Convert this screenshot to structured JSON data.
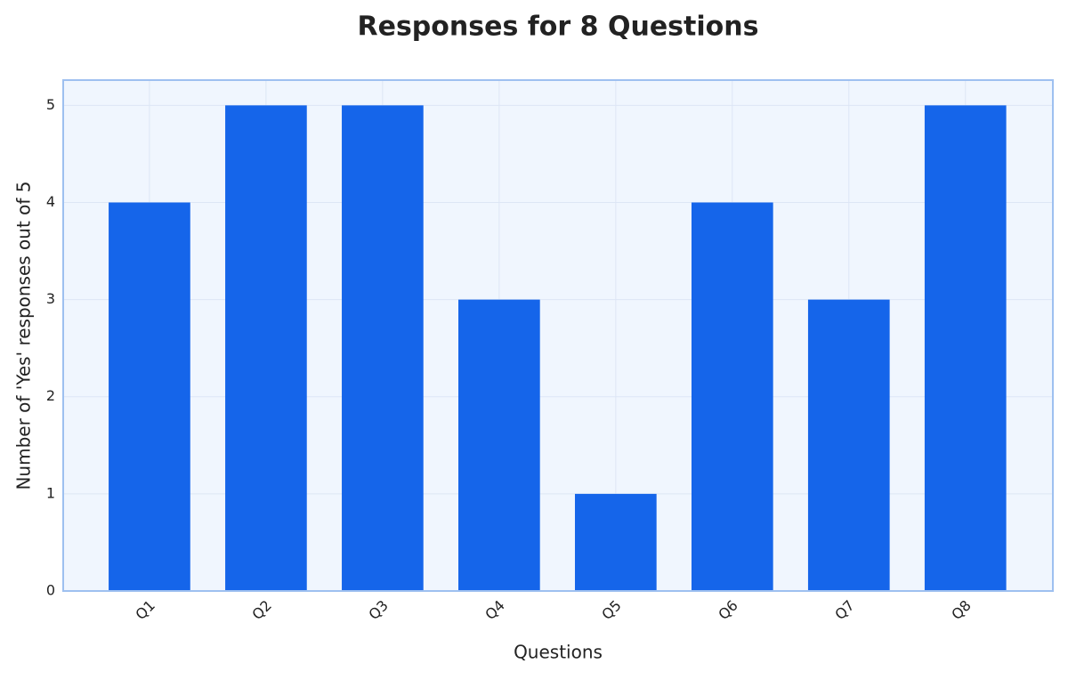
{
  "chart_data": {
    "type": "bar",
    "title": "Responses for 8 Questions",
    "x_label": "Questions",
    "y_label": "Number of 'Yes' responses out of 5",
    "categories": [
      "Q1",
      "Q2",
      "Q3",
      "Q4",
      "Q5",
      "Q6",
      "Q7",
      "Q8"
    ],
    "values": [
      4,
      5,
      5,
      3,
      1,
      4,
      3,
      5
    ],
    "color": "#1565ea",
    "ylim": [
      0,
      5.26
    ],
    "yticks": [
      0,
      1,
      2,
      3,
      4,
      5
    ],
    "grid": true
  }
}
